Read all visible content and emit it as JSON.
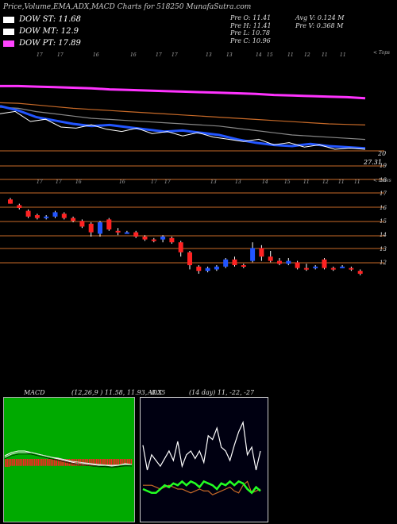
{
  "header": {
    "title": "Price,Volume,EMA,ADX,MACD Charts for 518250  MunafaSutra.com"
  },
  "legend": [
    {
      "label": "DOW ST: 11.68",
      "color": "#ffffff"
    },
    {
      "label": "DOW MT: 12.9",
      "color": "#ffffff"
    },
    {
      "label": "DOW PT: 17.89",
      "color": "#ff44ff"
    }
  ],
  "stats": {
    "pre_o": "Pre   O: 11.41",
    "pre_h": "Pre   H: 11.41",
    "pre_l": "Pre   L: 10.78",
    "pre_c": "Pre   C: 10.96",
    "avg_v": "Avg V: 0.124  M",
    "pre_v": "Pre   V: 0.368  M"
  },
  "ema_panel": {
    "date_labels": [
      "17",
      "17",
      "16",
      "16",
      "17",
      "17",
      "13",
      "13",
      "14",
      "15",
      "11",
      "12",
      "11",
      "11"
    ],
    "right_tag": "< Tops",
    "value_20": "20",
    "value_2731": "27.31",
    "colors": {
      "ema_pink": "#ff33ff",
      "ema_blue": "#2255ff",
      "price": "#ffffff",
      "ema_orange": "#c86a28",
      "ema_gray": "#888888"
    }
  },
  "candle_panel": {
    "date_labels": [
      "17",
      "17",
      "16",
      "16",
      "17",
      "17",
      "13",
      "13",
      "14",
      "15",
      "11",
      "12",
      "11",
      "11"
    ],
    "right_tag": "< Lows",
    "axis_ticks": [
      "19",
      "18",
      "17",
      "16",
      "15",
      "14",
      "13",
      "12"
    ]
  },
  "chart_data": [
    {
      "type": "line",
      "title": "",
      "ylabel": "",
      "series": [
        {
          "name": "",
          "values": [
            20.4,
            20.4,
            20.35,
            20.3,
            20.25,
            20.2,
            20.1,
            20.05,
            20.0,
            19.95,
            19.9,
            19.85,
            19.8,
            19.75,
            19.7,
            19.6,
            19.55,
            19.5,
            19.45,
            19.4,
            19.3
          ]
        },
        {
          "name": "",
          "values": [
            18.9,
            18.85,
            18.7,
            18.55,
            18.4,
            18.3,
            18.2,
            18.1,
            18.0,
            17.9,
            17.8,
            17.7,
            17.6,
            17.5,
            17.4,
            17.3,
            17.2,
            17.1,
            17.0,
            16.95,
            16.9
          ]
        },
        {
          "name": "",
          "values": [
            18.5,
            18.4,
            18.1,
            17.9,
            17.7,
            17.5,
            17.4,
            17.3,
            17.2,
            17.1,
            17.0,
            16.9,
            16.8,
            16.6,
            16.4,
            16.2,
            16.0,
            15.9,
            15.8,
            15.7,
            15.6
          ]
        },
        {
          "name": "",
          "values": [
            18.6,
            18.2,
            17.6,
            17.3,
            17.0,
            16.8,
            16.9,
            16.7,
            16.5,
            16.3,
            16.4,
            16.2,
            16.0,
            15.6,
            15.3,
            15.1,
            15.0,
            15.2,
            15.0,
            14.9,
            14.8
          ]
        }
      ]
    },
    {
      "type": "bar",
      "title": "",
      "ylabel": "",
      "ylim": [
        11,
        20
      ],
      "candles": [
        {
          "o": 16.6,
          "h": 16.7,
          "l": 16.3,
          "c": 16.3
        },
        {
          "o": 16.2,
          "h": 16.3,
          "l": 15.9,
          "c": 16.0
        },
        {
          "o": 15.8,
          "h": 15.9,
          "l": 15.3,
          "c": 15.4
        },
        {
          "o": 15.5,
          "h": 15.6,
          "l": 15.2,
          "c": 15.3
        },
        {
          "o": 15.3,
          "h": 15.5,
          "l": 15.2,
          "c": 15.4
        },
        {
          "o": 15.4,
          "h": 15.8,
          "l": 15.3,
          "c": 15.7
        },
        {
          "o": 15.6,
          "h": 15.7,
          "l": 15.2,
          "c": 15.3
        },
        {
          "o": 15.3,
          "h": 15.4,
          "l": 15.0,
          "c": 15.1
        },
        {
          "o": 15.1,
          "h": 15.2,
          "l": 14.6,
          "c": 14.7
        },
        {
          "o": 14.9,
          "h": 15.0,
          "l": 14.0,
          "c": 14.3
        },
        {
          "o": 14.2,
          "h": 15.1,
          "l": 14.0,
          "c": 15.0
        },
        {
          "o": 15.2,
          "h": 15.3,
          "l": 14.4,
          "c": 14.5
        },
        {
          "o": 14.4,
          "h": 14.6,
          "l": 14.1,
          "c": 14.3
        },
        {
          "o": 14.3,
          "h": 14.4,
          "l": 14.2,
          "c": 14.3
        },
        {
          "o": 14.3,
          "h": 14.4,
          "l": 13.9,
          "c": 14.0
        },
        {
          "o": 14.0,
          "h": 14.1,
          "l": 13.7,
          "c": 13.8
        },
        {
          "o": 13.8,
          "h": 13.9,
          "l": 13.6,
          "c": 13.7
        },
        {
          "o": 13.8,
          "h": 14.1,
          "l": 13.6,
          "c": 14.0
        },
        {
          "o": 13.9,
          "h": 14.0,
          "l": 13.5,
          "c": 13.6
        },
        {
          "o": 13.6,
          "h": 13.7,
          "l": 12.6,
          "c": 12.9
        },
        {
          "o": 12.9,
          "h": 13.0,
          "l": 11.7,
          "c": 12.0
        },
        {
          "o": 11.9,
          "h": 12.0,
          "l": 11.4,
          "c": 11.6
        },
        {
          "o": 11.6,
          "h": 11.9,
          "l": 11.5,
          "c": 11.8
        },
        {
          "o": 11.7,
          "h": 12.0,
          "l": 11.6,
          "c": 11.9
        },
        {
          "o": 11.9,
          "h": 12.5,
          "l": 11.8,
          "c": 12.4
        },
        {
          "o": 12.4,
          "h": 12.6,
          "l": 11.9,
          "c": 12.0
        },
        {
          "o": 12.0,
          "h": 12.1,
          "l": 11.8,
          "c": 11.9
        },
        {
          "o": 12.3,
          "h": 13.6,
          "l": 12.2,
          "c": 13.2
        },
        {
          "o": 13.2,
          "h": 13.4,
          "l": 12.3,
          "c": 12.6
        },
        {
          "o": 12.6,
          "h": 13.0,
          "l": 12.2,
          "c": 12.3
        },
        {
          "o": 12.3,
          "h": 12.5,
          "l": 12.0,
          "c": 12.1
        },
        {
          "o": 12.1,
          "h": 12.5,
          "l": 12.0,
          "c": 12.3
        },
        {
          "o": 12.2,
          "h": 12.3,
          "l": 11.7,
          "c": 11.8
        },
        {
          "o": 11.8,
          "h": 12.1,
          "l": 11.6,
          "c": 11.7
        },
        {
          "o": 11.8,
          "h": 12.0,
          "l": 11.7,
          "c": 11.9
        },
        {
          "o": 12.4,
          "h": 12.5,
          "l": 11.7,
          "c": 11.8
        },
        {
          "o": 11.8,
          "h": 11.9,
          "l": 11.6,
          "c": 11.7
        },
        {
          "o": 11.9,
          "h": 12.0,
          "l": 11.8,
          "c": 11.9
        },
        {
          "o": 11.8,
          "h": 11.9,
          "l": 11.6,
          "c": 11.7
        },
        {
          "o": 11.6,
          "h": 11.7,
          "l": 11.3,
          "c": 11.4
        }
      ]
    },
    {
      "type": "line",
      "title": "MACD",
      "params": "(12,26,9 ) 11.58, 11.93, -0.35",
      "series": [
        {
          "name": "",
          "values": [
            0.2,
            0.4,
            0.5,
            0.5,
            0.4,
            0.3,
            0.2,
            0.1,
            0.0,
            -0.1,
            -0.2,
            -0.3,
            -0.3,
            -0.35,
            -0.4,
            -0.4,
            -0.45,
            -0.4,
            -0.3,
            -0.35
          ]
        },
        {
          "name": "",
          "values": [
            0.1,
            0.3,
            0.4,
            0.4,
            0.4,
            0.3,
            0.2,
            0.1,
            0.05,
            -0.05,
            -0.15,
            -0.2,
            -0.25,
            -0.3,
            -0.35,
            -0.38,
            -0.4,
            -0.38,
            -0.35,
            -0.35
          ]
        }
      ],
      "hist": [
        0.4,
        0.4,
        0.4,
        0.35,
        0.35,
        0.35,
        0.35,
        0.35,
        0.35,
        0.35,
        0.35,
        0.35,
        0.35,
        0.35,
        0.35,
        0.35,
        0.35,
        0.35,
        0.35,
        0.35,
        0.35,
        0.35,
        0.35,
        0.35,
        0.35,
        0.35,
        0.35,
        0.35,
        0.35,
        0.35,
        0.35,
        0.35,
        0.35,
        0.35,
        0.35,
        0.35,
        0.35,
        0.35,
        0.35,
        0.35,
        0.35,
        0.35,
        0.35,
        0.35,
        0.35,
        0.35,
        0.35,
        0.35,
        0.35,
        0.35,
        0.3,
        0.3,
        0.3,
        0.3,
        0.3,
        0.3,
        0.3,
        0.3,
        0.3,
        0.3,
        0.3,
        0.3,
        0.3,
        0.3,
        0.3,
        0.3,
        0.3,
        0.3,
        0.3,
        0.3
      ]
    },
    {
      "type": "line",
      "title": "ADX",
      "params": "(14  day) 11, -22, -27",
      "series": [
        {
          "name": "",
          "values": [
            33,
            20,
            28,
            25,
            22,
            26,
            30,
            25,
            35,
            22,
            28,
            30,
            26,
            30,
            24,
            38,
            36,
            42,
            32,
            30,
            25,
            33,
            40,
            45,
            28,
            32,
            20,
            30
          ]
        },
        {
          "name": "",
          "values": [
            12,
            12,
            12,
            11,
            10,
            11,
            12,
            11,
            10,
            10,
            9,
            8,
            9,
            10,
            9,
            9,
            7,
            8,
            9,
            10,
            11,
            9,
            8,
            12,
            14,
            8,
            9,
            10
          ]
        },
        {
          "name": "",
          "values": [
            10,
            9,
            8,
            8,
            10,
            12,
            11,
            13,
            12,
            14,
            12,
            14,
            13,
            11,
            14,
            13,
            12,
            10,
            13,
            12,
            14,
            12,
            14,
            13,
            10,
            8,
            11,
            9
          ]
        }
      ]
    }
  ]
}
